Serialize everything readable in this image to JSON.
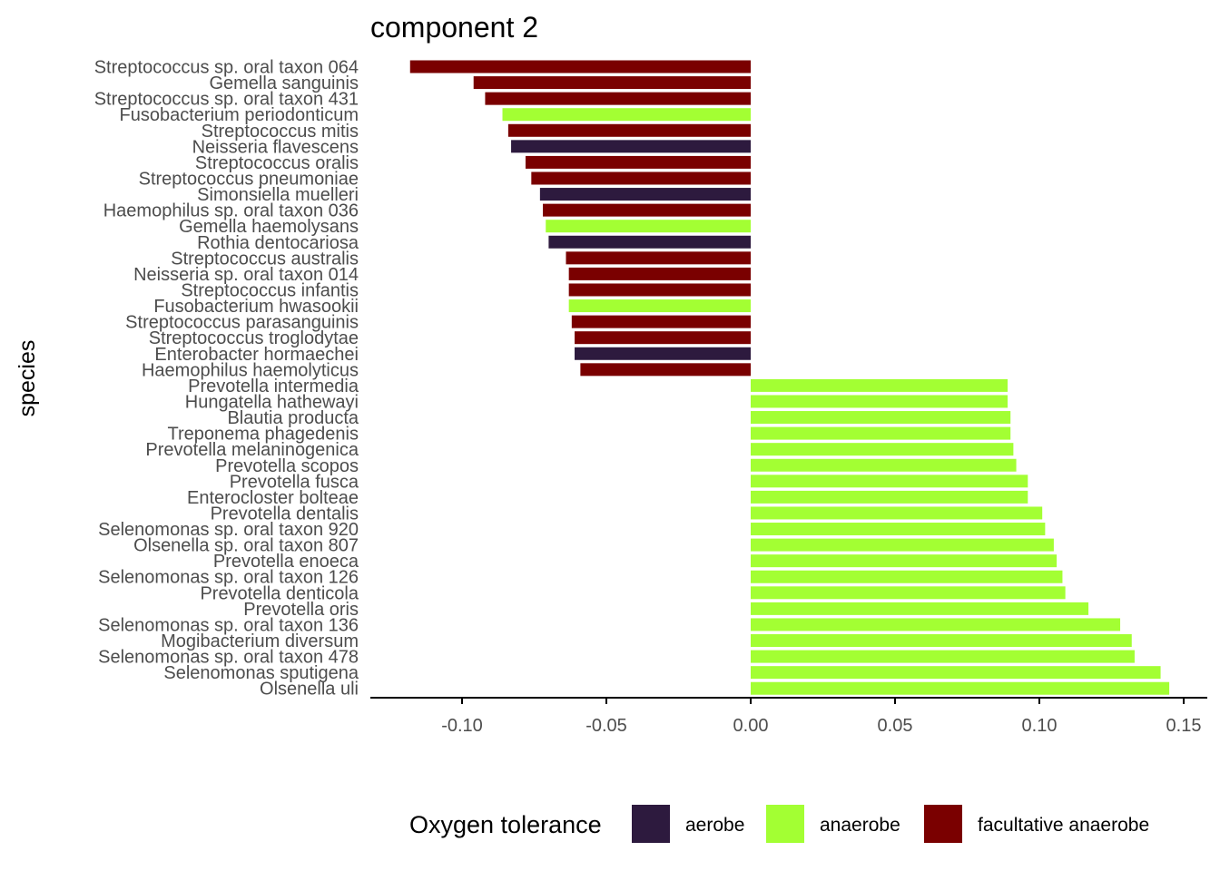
{
  "chart_data": {
    "type": "bar",
    "orientation": "horizontal",
    "title": "component 2",
    "ylabel": "species",
    "xlabel": "",
    "xlim": [
      -0.13,
      0.16
    ],
    "x_ticks": [
      -0.1,
      -0.05,
      0.0,
      0.05,
      0.1,
      0.15
    ],
    "x_tick_labels": [
      "-0.10",
      "-0.05",
      "0.00",
      "0.05",
      "0.10",
      "0.15"
    ],
    "grid": false,
    "legend": {
      "title": "Oxygen tolerance",
      "position": "bottom",
      "entries": [
        {
          "label": "aerobe",
          "color": "#2d1a3e"
        },
        {
          "label": "anaerobe",
          "color": "#a3ff33"
        },
        {
          "label": "facultative anaerobe",
          "color": "#7a0000"
        }
      ]
    },
    "bars": [
      {
        "species": "Streptococcus sp. oral taxon 064",
        "value": -0.118,
        "group": "facultative anaerobe"
      },
      {
        "species": "Gemella sanguinis",
        "value": -0.096,
        "group": "facultative anaerobe"
      },
      {
        "species": "Streptococcus sp. oral taxon 431",
        "value": -0.092,
        "group": "facultative anaerobe"
      },
      {
        "species": "Fusobacterium periodonticum",
        "value": -0.086,
        "group": "anaerobe"
      },
      {
        "species": "Streptococcus mitis",
        "value": -0.084,
        "group": "facultative anaerobe"
      },
      {
        "species": "Neisseria flavescens",
        "value": -0.083,
        "group": "aerobe"
      },
      {
        "species": "Streptococcus oralis",
        "value": -0.078,
        "group": "facultative anaerobe"
      },
      {
        "species": "Streptococcus pneumoniae",
        "value": -0.076,
        "group": "facultative anaerobe"
      },
      {
        "species": "Simonsiella muelleri",
        "value": -0.073,
        "group": "aerobe"
      },
      {
        "species": "Haemophilus sp. oral taxon 036",
        "value": -0.072,
        "group": "facultative anaerobe"
      },
      {
        "species": "Gemella haemolysans",
        "value": -0.071,
        "group": "anaerobe"
      },
      {
        "species": "Rothia dentocariosa",
        "value": -0.07,
        "group": "aerobe"
      },
      {
        "species": "Streptococcus australis",
        "value": -0.064,
        "group": "facultative anaerobe"
      },
      {
        "species": "Neisseria sp. oral taxon 014",
        "value": -0.063,
        "group": "facultative anaerobe"
      },
      {
        "species": "Streptococcus infantis",
        "value": -0.063,
        "group": "facultative anaerobe"
      },
      {
        "species": "Fusobacterium hwasookii",
        "value": -0.063,
        "group": "anaerobe"
      },
      {
        "species": "Streptococcus parasanguinis",
        "value": -0.062,
        "group": "facultative anaerobe"
      },
      {
        "species": "Streptococcus troglodytae",
        "value": -0.061,
        "group": "facultative anaerobe"
      },
      {
        "species": "Enterobacter hormaechei",
        "value": -0.061,
        "group": "aerobe"
      },
      {
        "species": "Haemophilus haemolyticus",
        "value": -0.059,
        "group": "facultative anaerobe"
      },
      {
        "species": "Prevotella intermedia",
        "value": 0.089,
        "group": "anaerobe"
      },
      {
        "species": "Hungatella hathewayi",
        "value": 0.089,
        "group": "anaerobe"
      },
      {
        "species": "Blautia producta",
        "value": 0.09,
        "group": "anaerobe"
      },
      {
        "species": "Treponema phagedenis",
        "value": 0.09,
        "group": "anaerobe"
      },
      {
        "species": "Prevotella melaninogenica",
        "value": 0.091,
        "group": "anaerobe"
      },
      {
        "species": "Prevotella scopos",
        "value": 0.092,
        "group": "anaerobe"
      },
      {
        "species": "Prevotella fusca",
        "value": 0.096,
        "group": "anaerobe"
      },
      {
        "species": "Enterocloster bolteae",
        "value": 0.096,
        "group": "anaerobe"
      },
      {
        "species": "Prevotella dentalis",
        "value": 0.101,
        "group": "anaerobe"
      },
      {
        "species": "Selenomonas sp. oral taxon 920",
        "value": 0.102,
        "group": "anaerobe"
      },
      {
        "species": "Olsenella sp. oral taxon 807",
        "value": 0.105,
        "group": "anaerobe"
      },
      {
        "species": "Prevotella enoeca",
        "value": 0.106,
        "group": "anaerobe"
      },
      {
        "species": "Selenomonas sp. oral taxon 126",
        "value": 0.108,
        "group": "anaerobe"
      },
      {
        "species": "Prevotella denticola",
        "value": 0.109,
        "group": "anaerobe"
      },
      {
        "species": "Prevotella oris",
        "value": 0.117,
        "group": "anaerobe"
      },
      {
        "species": "Selenomonas sp. oral taxon 136",
        "value": 0.128,
        "group": "anaerobe"
      },
      {
        "species": "Mogibacterium diversum",
        "value": 0.132,
        "group": "anaerobe"
      },
      {
        "species": "Selenomonas sp. oral taxon 478",
        "value": 0.133,
        "group": "anaerobe"
      },
      {
        "species": "Selenomonas sputigena",
        "value": 0.142,
        "group": "anaerobe"
      },
      {
        "species": "Olsenella uli",
        "value": 0.145,
        "group": "anaerobe"
      }
    ]
  }
}
